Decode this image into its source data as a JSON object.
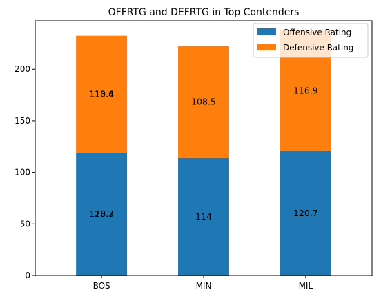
{
  "chart_data": {
    "type": "bar",
    "stacked": true,
    "title": "OFFRTG and DEFRTG in Top Contenders",
    "xlabel": "",
    "ylabel": "",
    "categories": [
      "BOS",
      "MIN",
      "MIL"
    ],
    "ylim": [
      0,
      247
    ],
    "yticks": [
      0,
      50,
      100,
      150,
      200
    ],
    "grid": false,
    "legend": "top-right",
    "series": [
      {
        "name": "Offensive Rating",
        "color": "#1f77b4",
        "values": [
          119,
          114,
          120.7
        ],
        "labels": [
          [
            "120.3",
            "118.7"
          ],
          [
            "114"
          ],
          [
            "120.7"
          ]
        ]
      },
      {
        "name": "Defensive Rating",
        "color": "#ff7f0e",
        "values": [
          113.5,
          108.5,
          116.9
        ],
        "labels": [
          [
            "110.6",
            "113.4"
          ],
          [
            "108.5"
          ],
          [
            "116.9"
          ]
        ]
      }
    ]
  }
}
